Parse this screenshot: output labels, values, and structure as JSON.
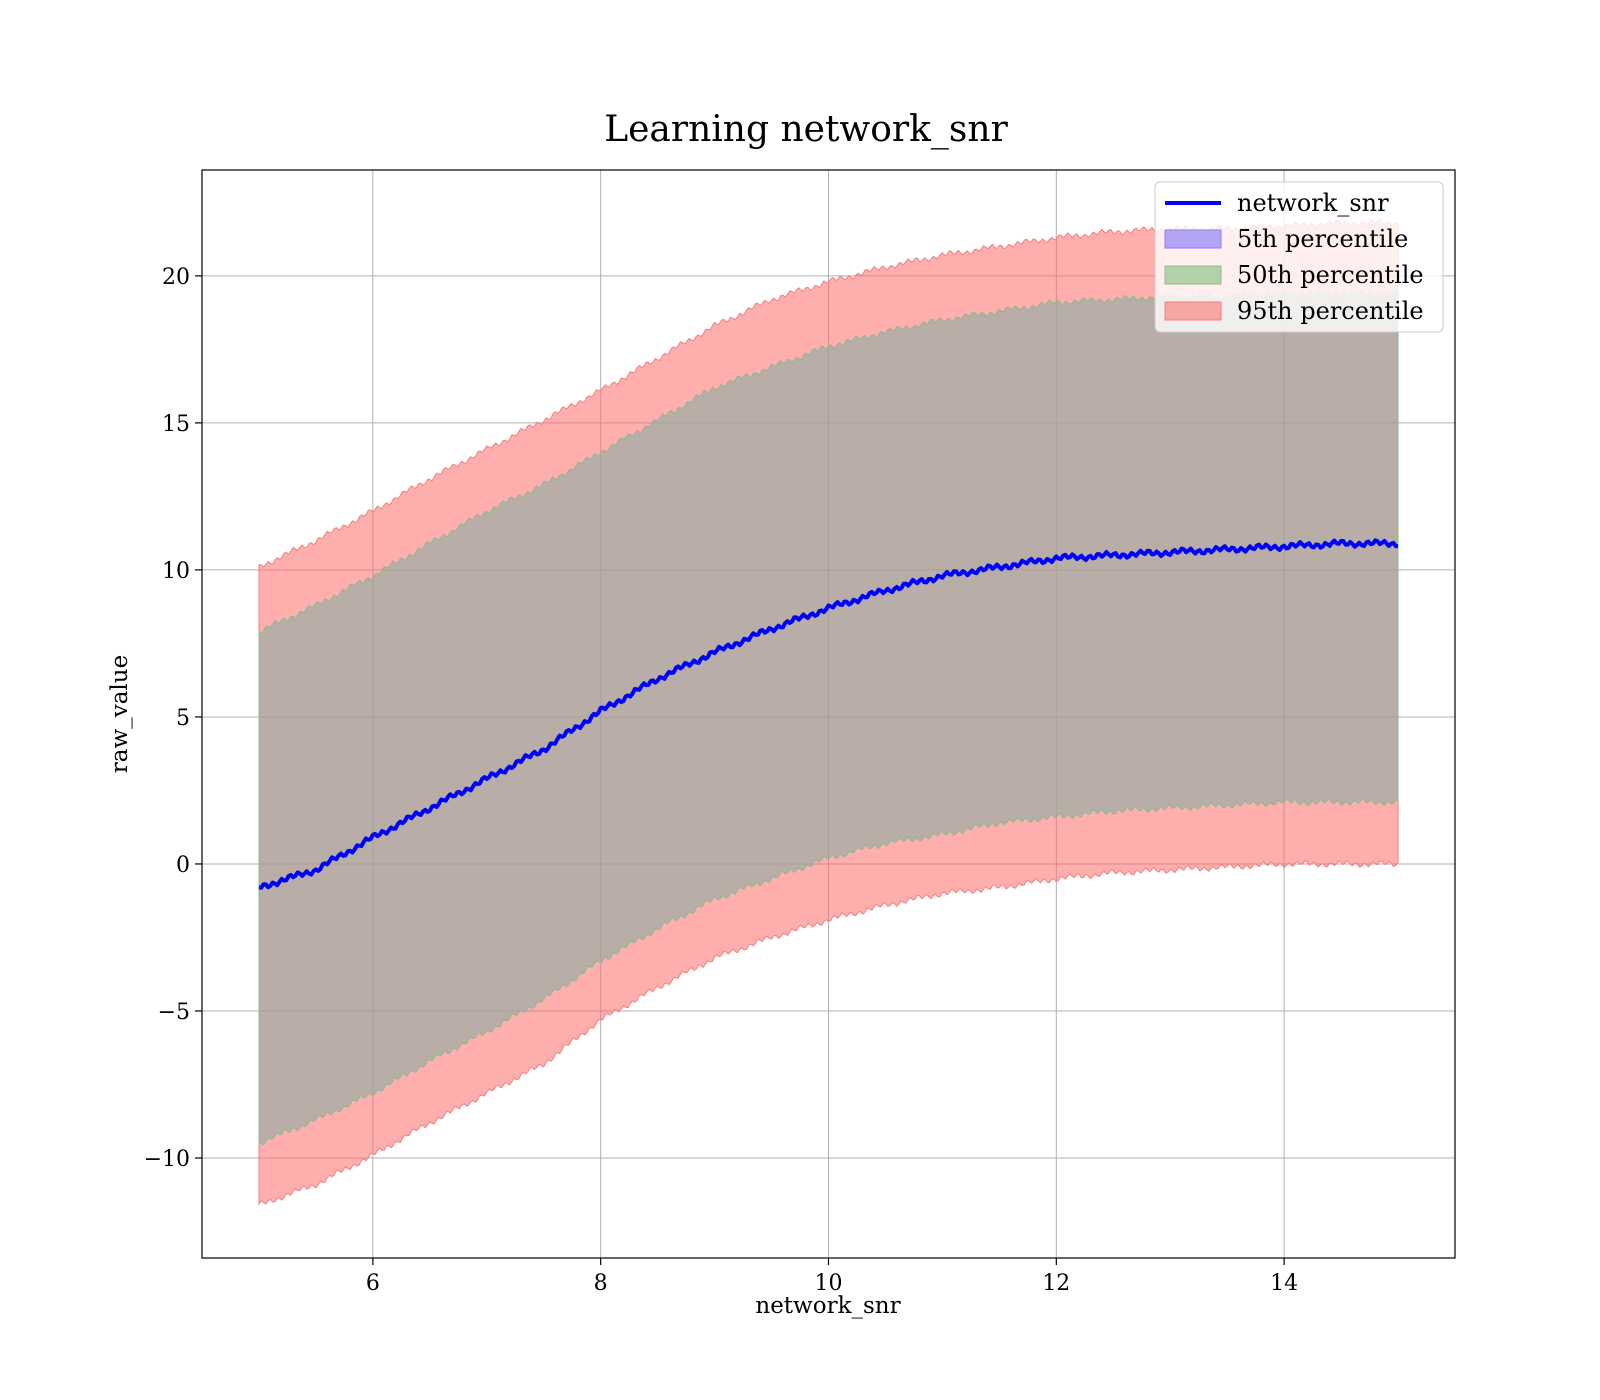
{
  "chart_data": {
    "type": "area",
    "title": "Learning network_snr",
    "xlabel": "network_snr",
    "ylabel": "raw_value",
    "xlim": [
      4.5,
      15.5
    ],
    "ylim": [
      -13.4,
      23.6
    ],
    "x_ticks": [
      6,
      8,
      10,
      12,
      14
    ],
    "y_ticks": [
      -10,
      -5,
      0,
      5,
      10,
      15,
      20
    ],
    "x_tick_labels": [
      "6",
      "8",
      "10",
      "12",
      "14"
    ],
    "y_tick_labels": [
      "−10",
      "−5",
      "0",
      "5",
      "10",
      "15",
      "20"
    ],
    "grid": true,
    "legend_position": "top-right",
    "legend": [
      {
        "label": "network_snr",
        "kind": "line",
        "color": "#0000ff"
      },
      {
        "label": "5th percentile",
        "kind": "patch",
        "color": "#b3a5f5",
        "edge": "#8f7fee"
      },
      {
        "label": "50th percentile",
        "kind": "patch",
        "color": "#b3d1a9",
        "edge": "#8fbf87"
      },
      {
        "label": "95th percentile",
        "kind": "patch",
        "color": "#f7a5a5",
        "edge": "#f08080"
      }
    ],
    "x": [
      5,
      5.5,
      6,
      6.5,
      7,
      7.5,
      8,
      8.5,
      9,
      9.5,
      10,
      10.5,
      11,
      11.5,
      12,
      12.5,
      13,
      13.5,
      14,
      14.5,
      15
    ],
    "series": [
      {
        "name": "network_snr",
        "values": [
          -0.8,
          -0.2,
          0.9,
          1.9,
          2.9,
          3.9,
          5.2,
          6.3,
          7.2,
          8.0,
          8.7,
          9.3,
          9.8,
          10.1,
          10.4,
          10.5,
          10.6,
          10.7,
          10.8,
          10.9,
          10.9
        ]
      },
      {
        "name": "95th percentile",
        "lower": [
          -11.6,
          -10.9,
          -9.9,
          -8.8,
          -7.8,
          -6.8,
          -5.3,
          -4.2,
          -3.2,
          -2.5,
          -1.9,
          -1.4,
          -1.0,
          -0.8,
          -0.5,
          -0.3,
          -0.2,
          -0.1,
          0.0,
          0.0,
          0.0
        ],
        "upper": [
          10.1,
          11.0,
          12.0,
          13.1,
          14.1,
          15.1,
          16.1,
          17.2,
          18.3,
          19.2,
          19.8,
          20.3,
          20.7,
          21.0,
          21.3,
          21.5,
          21.6,
          21.6,
          21.7,
          21.8,
          21.8
        ]
      },
      {
        "name": "50th percentile",
        "lower": [
          -9.5,
          -8.7,
          -7.8,
          -6.7,
          -5.7,
          -4.6,
          -3.3,
          -2.2,
          -1.2,
          -0.5,
          0.2,
          0.7,
          1.0,
          1.4,
          1.6,
          1.8,
          1.9,
          2.0,
          2.1,
          2.1,
          2.1
        ],
        "upper": [
          7.9,
          8.8,
          9.8,
          10.9,
          12.0,
          12.9,
          14.0,
          15.1,
          16.2,
          16.9,
          17.6,
          18.1,
          18.5,
          18.8,
          19.1,
          19.2,
          19.3,
          19.3,
          19.4,
          19.4,
          19.4
        ]
      },
      {
        "name": "5th percentile",
        "lower": [
          -9.5,
          -8.7,
          -7.8,
          -6.7,
          -5.7,
          -4.6,
          -3.3,
          -2.2,
          -1.2,
          -0.5,
          0.2,
          0.7,
          1.0,
          1.4,
          1.6,
          1.8,
          1.9,
          2.0,
          2.1,
          2.1,
          2.1
        ],
        "upper": [
          7.9,
          8.8,
          9.8,
          10.9,
          12.0,
          12.9,
          14.0,
          15.1,
          16.2,
          16.9,
          17.6,
          18.1,
          18.5,
          18.8,
          19.1,
          19.2,
          19.3,
          19.3,
          19.4,
          19.4,
          19.4
        ]
      }
    ],
    "colors": {
      "line": "#0000ff",
      "band95": "#ff6b6b",
      "band50": "#8fbf87",
      "band5": "#8f7fee",
      "overlap": "#c8967a"
    }
  }
}
